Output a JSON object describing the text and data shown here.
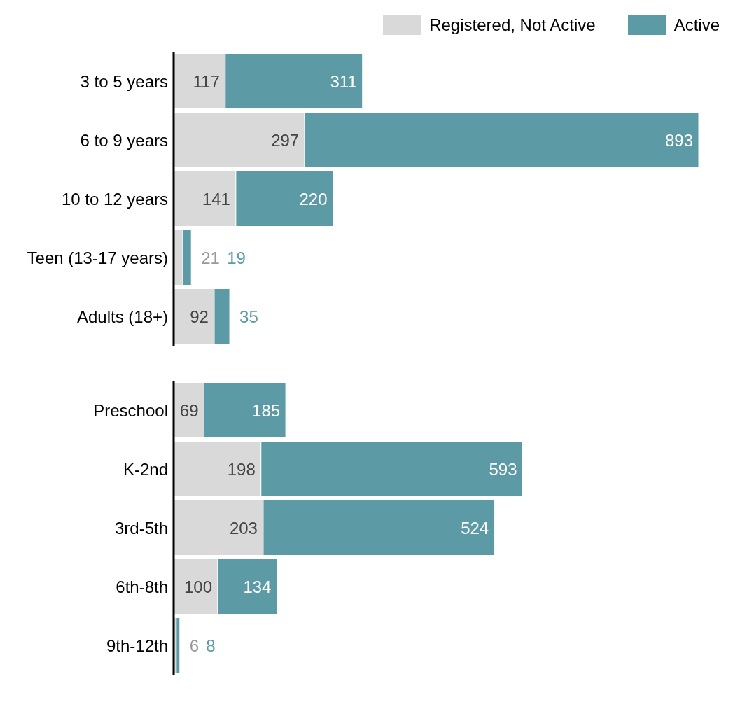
{
  "chart_data": [
    {
      "type": "bar",
      "orientation": "horizontal",
      "stacked": true,
      "data_labels": true,
      "legend": "top right",
      "categories": [
        "3 to 5 years",
        "6 to 9 years",
        "10 to 12 years",
        "Teen (13-17 years)",
        "Adults (18+)"
      ],
      "series": [
        {
          "name": "Registered, Not Active",
          "color": "#d9d9d9",
          "values": [
            117,
            297,
            141,
            21,
            92
          ]
        },
        {
          "name": "Active",
          "color": "#5c9aa5",
          "values": [
            311,
            893,
            220,
            19,
            35
          ]
        }
      ]
    },
    {
      "type": "bar",
      "orientation": "horizontal",
      "stacked": true,
      "data_labels": true,
      "categories": [
        "Preschool",
        "K-2nd",
        "3rd-5th",
        "6th-8th",
        "9th-12th"
      ],
      "series": [
        {
          "color": "#d9d9d9",
          "values": [
            69,
            198,
            203,
            100,
            6
          ]
        },
        {
          "color": "#5c9aa5",
          "values": [
            185,
            593,
            524,
            134,
            8
          ]
        }
      ]
    }
  ]
}
